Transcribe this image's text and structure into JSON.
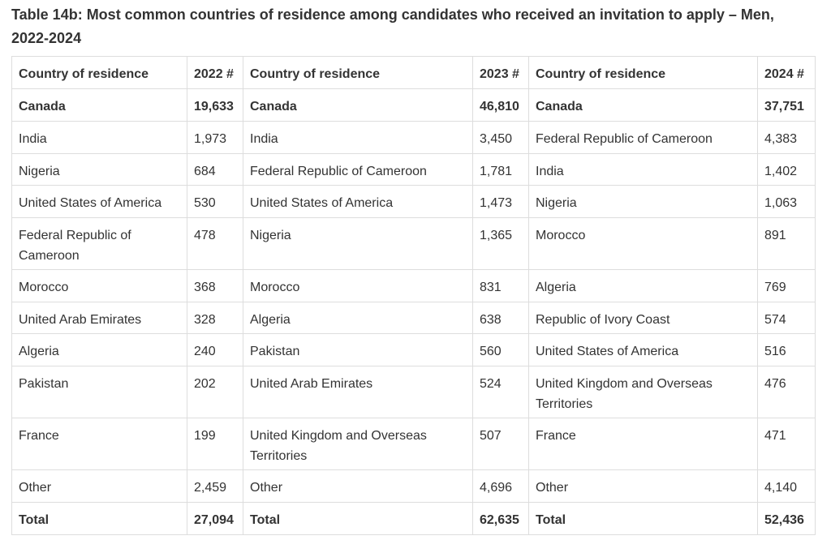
{
  "title": "Table 14b: Most common countries of residence among candidates who received an invitation to apply – Men, 2022-2024",
  "table": {
    "header": [
      "Country of residence",
      "2022 #",
      "Country of residence",
      "2023 #",
      "Country of residence",
      "2024 #"
    ],
    "rows": [
      [
        "Canada",
        "19,633",
        "Canada",
        "46,810",
        "Canada",
        "37,751"
      ],
      [
        "India",
        "1,973",
        "India",
        "3,450",
        "Federal Republic of Cameroon",
        "4,383"
      ],
      [
        "Nigeria",
        "684",
        "Federal Republic of Cameroon",
        "1,781",
        "India",
        "1,402"
      ],
      [
        "United States of America",
        "530",
        "United States of America",
        "1,473",
        "Nigeria",
        "1,063"
      ],
      [
        "Federal Republic of Cameroon",
        "478",
        "Nigeria",
        "1,365",
        "Morocco",
        "891"
      ],
      [
        "Morocco",
        "368",
        "Morocco",
        "831",
        "Algeria",
        "769"
      ],
      [
        "United Arab Emirates",
        "328",
        "Algeria",
        "638",
        "Republic of Ivory Coast",
        "574"
      ],
      [
        "Algeria",
        "240",
        "Pakistan",
        "560",
        "United States of America",
        "516"
      ],
      [
        "Pakistan",
        "202",
        "United Arab Emirates",
        "524",
        "United Kingdom and Overseas Territories",
        "476"
      ],
      [
        "France",
        "199",
        "United Kingdom and Overseas Territories",
        "507",
        "France",
        "471"
      ],
      [
        "Other",
        "2,459",
        "Other",
        "4,696",
        "Other",
        "4,140"
      ],
      [
        "Total",
        "27,094",
        "Total",
        "62,635",
        "Total",
        "52,436"
      ]
    ]
  }
}
